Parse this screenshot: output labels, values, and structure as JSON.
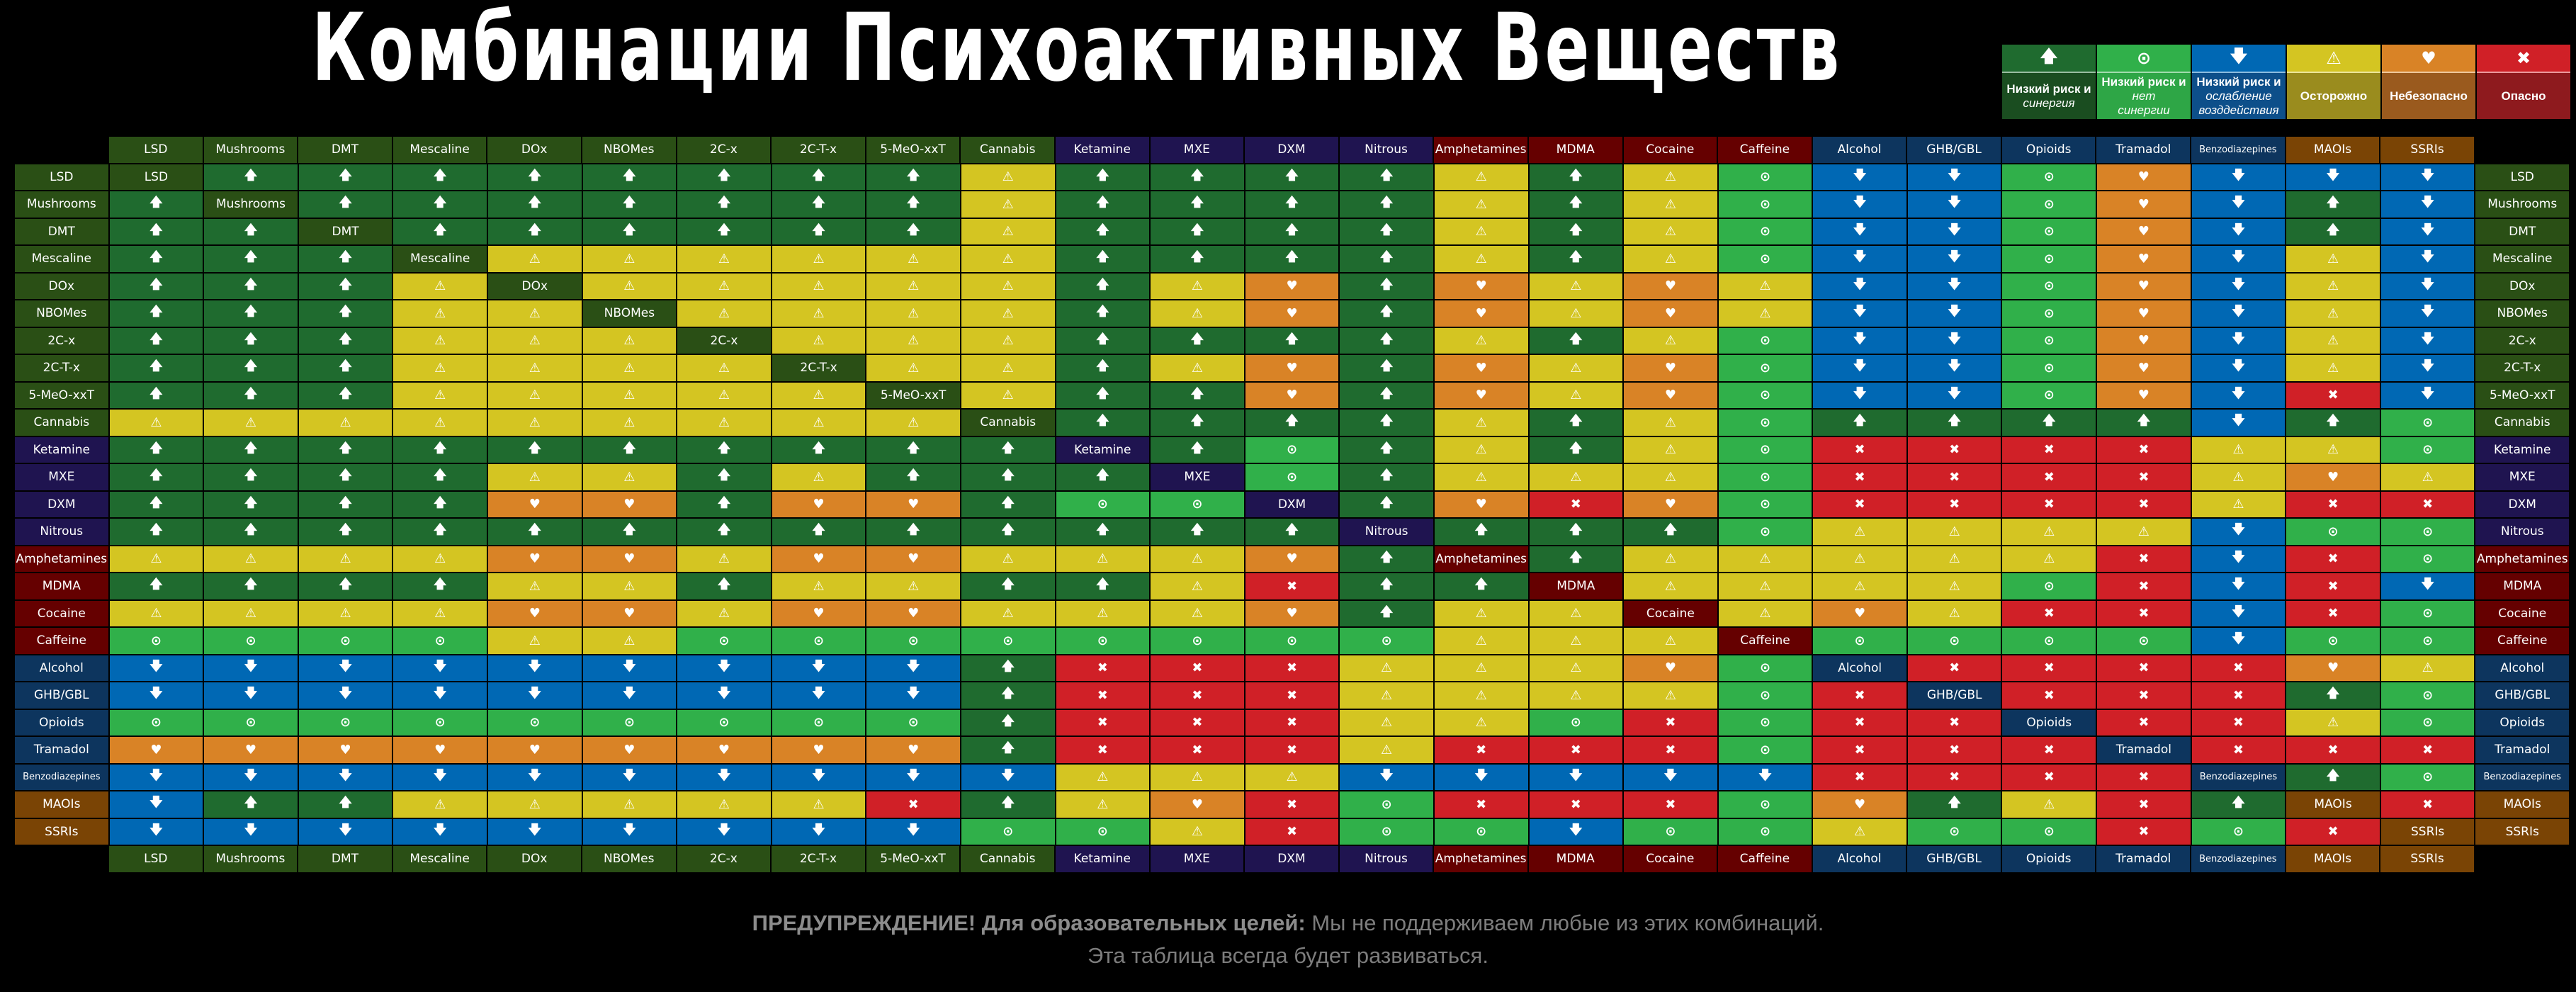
{
  "title": "Комбинации Психоактивных Веществ",
  "legend": [
    {
      "code": "S",
      "icon": "arrow-up",
      "glyph": "🡅",
      "line1": "Низкий риск и",
      "line2": "синергия",
      "line3": "",
      "color": "#1f6b2f",
      "dark": "#1a4d20"
    },
    {
      "code": "N",
      "icon": "circle-dot",
      "glyph": "⊙",
      "line1": "Низкий риск и",
      "line2": "нет",
      "line3": "синергии",
      "color": "#30b04a",
      "dark": "#2ea646"
    },
    {
      "code": "D",
      "icon": "arrow-down",
      "glyph": "🡇",
      "line1": "Низкий риск и",
      "line2": "ослабление",
      "line3": "возддействия",
      "color": "#0068b4",
      "dark": "#0d4f8a"
    },
    {
      "code": "C",
      "icon": "warning",
      "glyph": "⚠",
      "line1": "Осторожно",
      "line2": "",
      "line3": "",
      "color": "#d4c522",
      "dark": "#9a8c1e"
    },
    {
      "code": "U",
      "icon": "heart-pulse",
      "glyph": "♥",
      "line1": "Небезопасно",
      "line2": "",
      "line3": "",
      "color": "#d98326",
      "dark": "#9a5a1e"
    },
    {
      "code": "X",
      "icon": "cross",
      "glyph": "✖",
      "line1": "Опасно",
      "line2": "",
      "line3": "",
      "color": "#d02027",
      "dark": "#8e1a1e"
    }
  ],
  "group_colors": {
    "psychedelic": "#2a4f15",
    "dissociative": "#1f1450",
    "stimulant": "#650000",
    "depressant": "#0d355e",
    "serotonergic": "#7a4405"
  },
  "drugs": [
    {
      "name": "LSD",
      "group": "psychedelic"
    },
    {
      "name": "Mushrooms",
      "group": "psychedelic"
    },
    {
      "name": "DMT",
      "group": "psychedelic"
    },
    {
      "name": "Mescaline",
      "group": "psychedelic"
    },
    {
      "name": "DOx",
      "group": "psychedelic"
    },
    {
      "name": "NBOMes",
      "group": "psychedelic"
    },
    {
      "name": "2C-x",
      "group": "psychedelic"
    },
    {
      "name": "2C-T-x",
      "group": "psychedelic"
    },
    {
      "name": "5-MeO-xxT",
      "group": "psychedelic"
    },
    {
      "name": "Cannabis",
      "group": "psychedelic"
    },
    {
      "name": "Ketamine",
      "group": "dissociative"
    },
    {
      "name": "MXE",
      "group": "dissociative"
    },
    {
      "name": "DXM",
      "group": "dissociative"
    },
    {
      "name": "Nitrous",
      "group": "dissociative"
    },
    {
      "name": "Amphetamines",
      "group": "stimulant"
    },
    {
      "name": "MDMA",
      "group": "stimulant"
    },
    {
      "name": "Cocaine",
      "group": "stimulant"
    },
    {
      "name": "Caffeine",
      "group": "stimulant"
    },
    {
      "name": "Alcohol",
      "group": "depressant"
    },
    {
      "name": "GHB/GBL",
      "group": "depressant"
    },
    {
      "name": "Opioids",
      "group": "depressant"
    },
    {
      "name": "Tramadol",
      "group": "depressant"
    },
    {
      "name": "Benzodiazepines",
      "group": "depressant"
    },
    {
      "name": "MAOIs",
      "group": "serotonergic"
    },
    {
      "name": "SSRIs",
      "group": "serotonergic"
    }
  ],
  "matrix": [
    "-SSSSSSSSCSSSSCSCNDDNUDDD",
    "S-SSSSSSSCSSSSCSCNDDNUDSD",
    "SS-SSSSSSCSSSSCSCNDDNUDSD",
    "SSS-CCCCCCSSSSCSCNDDNUDCD",
    "SSSC-CCCCCSCUSUCUCDDNUDCD",
    "SSSCC-CCCCSCUSUCUCDDNUDCD",
    "SSSCCC-CCCSSSSCSCNDDNUDCD",
    "SSSCCCC-CCSCUSUCUNDDNUDCD",
    "SSSCCCCC-CSSUSUCUNDDNUDXD",
    "CCCCCCCCC-SSSSCSCNSSSSDSN",
    "SSSSSSSSSS-SNSCSCNXXXXCCN",
    "SSSSCCSCSSS-NSCCCNXXXXCUC",
    "SSSSUUSUUSNN-SUXUNXXXXCXX",
    "SSSSSSSSSSSSS-SSSNCCCCDNN",
    "CCCCUUCUUCCCUS-SCCCCCXDXN",
    "SSSSCCSCCSSCXSS-CCCCNXDXD",
    "CCCCUUCUUCCCUSCC-CUCXXDXN",
    "NNNNCCNNNNNNNNCCC-NNNNDNN",
    "DDDDDDDDDSXXXCCCUN-XXXXUC",
    "DDDDDDDDDSXXXCCCCNX-XXXSN",
    "NNNNNNNNNSXXXCCNXNXX-XXCN",
    "UUUUUUUUUSXXXCXXXNXXX-XXX",
    "DDDDDDDDDDCCCDDDDDXXXX-SN",
    "DSSCCCCCXSCUXNXXXNUSCXS-X",
    "DDDDDDDDDNNCXNNDNNCNNXNX-"
  ],
  "footer": {
    "warning_bold": "ПРЕДУПРЕЖДЕНИЕ! Для образовательных целей:",
    "warning_text": " Мы не поддерживаем любые из этих комбинаций.",
    "line2": "Эта таблица всегда будет развиваться."
  }
}
